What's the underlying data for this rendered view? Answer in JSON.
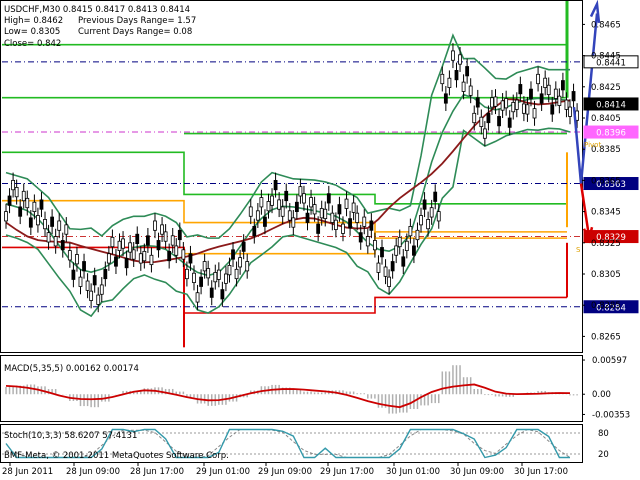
{
  "header": {
    "symbol_line": "USDCHF,M30  0.8415 0.8417 0.8413 0.8414",
    "high_label": "High= 0.8462",
    "low_label": "Low= 0.8305",
    "close_label": "Close= 0.842",
    "prev_range_label": "Previous Days Range= 1.57",
    "curr_range_label": "Current Days Range= 0.08"
  },
  "price_axis": {
    "ticks": [
      "0.8465",
      "0.8445",
      "0.8425",
      "0.8405",
      "0.8385",
      "0.8365",
      "0.8345",
      "0.8325",
      "0.8305",
      "0.8285",
      "0.8265"
    ],
    "ylim": [
      0.8255,
      0.848
    ]
  },
  "price_tags": [
    {
      "label": "0.8441",
      "value": 0.8441,
      "bg": "#ffffff",
      "fg": "#000000",
      "border": "#000000",
      "line": "#000080",
      "dash": true
    },
    {
      "label": "0.8414",
      "value": 0.8414,
      "bg": "#000000",
      "fg": "#ffffff",
      "border": "#000000",
      "line": null,
      "dash": false
    },
    {
      "label": "0.8396",
      "value": 0.8396,
      "bg": "#ff66ff",
      "fg": "#ffffff",
      "border": "#ff66ff",
      "line": "#cc33cc",
      "dash": true
    },
    {
      "label": "0.8363",
      "value": 0.8363,
      "bg": "#000080",
      "fg": "#ffffff",
      "border": "#000080",
      "line": "#000080",
      "dash": true
    },
    {
      "label": "0.8329",
      "value": 0.8329,
      "bg": "#cc0000",
      "fg": "#ffffff",
      "border": "#cc0000",
      "line": "#cc3333",
      "dash": true
    },
    {
      "label": "0.8284",
      "value": 0.8284,
      "bg": "#000080",
      "fg": "#ffffff",
      "border": "#000080",
      "line": "#000080",
      "dash": true
    }
  ],
  "pivot_labels": {
    "pivot": "Pivot",
    "s_label": "S"
  },
  "macd": {
    "label": "MACD(5,35,5) 0.00162 0.00174",
    "ticks": [
      "0.00597",
      "0.00",
      "-0.00353"
    ],
    "ylim": [
      -0.0045,
      0.0065
    ]
  },
  "stoch": {
    "label": "Stoch(10,3,3) 58.6207 57.4131",
    "ticks": [
      "80",
      "20"
    ],
    "ylim": [
      0,
      100
    ]
  },
  "copyright": "BMF-Meta, © 2001-2011 MetaQuotes Software Corp.",
  "time_axis": {
    "labels": [
      "28 Jun 2011",
      "28 Jun 09:00",
      "28 Jun 17:00",
      "29 Jun 01:00",
      "29 Jun 09:00",
      "29 Jun 17:00",
      "30 Jun 01:00",
      "30 Jun 09:00",
      "30 Jun 17:00"
    ]
  },
  "colors": {
    "candle": "#000000",
    "bb": "#2e8b57",
    "ma": "#8b1a1a",
    "green_level": "#22bb22",
    "orange_level": "#ffa500",
    "red_level": "#dd0000",
    "macd_line": "#cc0000",
    "macd_hist": "#b0b0b0",
    "stoch_main": "#3399aa",
    "stoch_signal": "#888888",
    "arrow_up": "#3344bb",
    "arrow_down": "#dd0000"
  },
  "chart_data": {
    "type": "line",
    "series": [
      {
        "values": [
          0.8352,
          0.835,
          0.8348,
          0.8342,
          0.8336,
          0.8326,
          0.8312,
          0.83,
          0.8296,
          0.8305,
          0.8318,
          0.8322,
          0.832,
          0.8324,
          0.8326,
          0.8324,
          0.832,
          0.831,
          0.83,
          0.8298,
          0.8302,
          0.831,
          0.832,
          0.8335,
          0.8346,
          0.8352,
          0.835,
          0.8348,
          0.8346,
          0.8344,
          0.8346,
          0.8344,
          0.834,
          0.8336,
          0.8326,
          0.8314,
          0.831,
          0.8318,
          0.833,
          0.8342,
          0.8352,
          0.842,
          0.844,
          0.8425,
          0.841,
          0.8405,
          0.8408,
          0.8412,
          0.8416,
          0.8418,
          0.842,
          0.8418,
          0.8416,
          0.8414
        ]
      }
    ],
    "ylim": [
      0.8255,
      0.848
    ]
  }
}
